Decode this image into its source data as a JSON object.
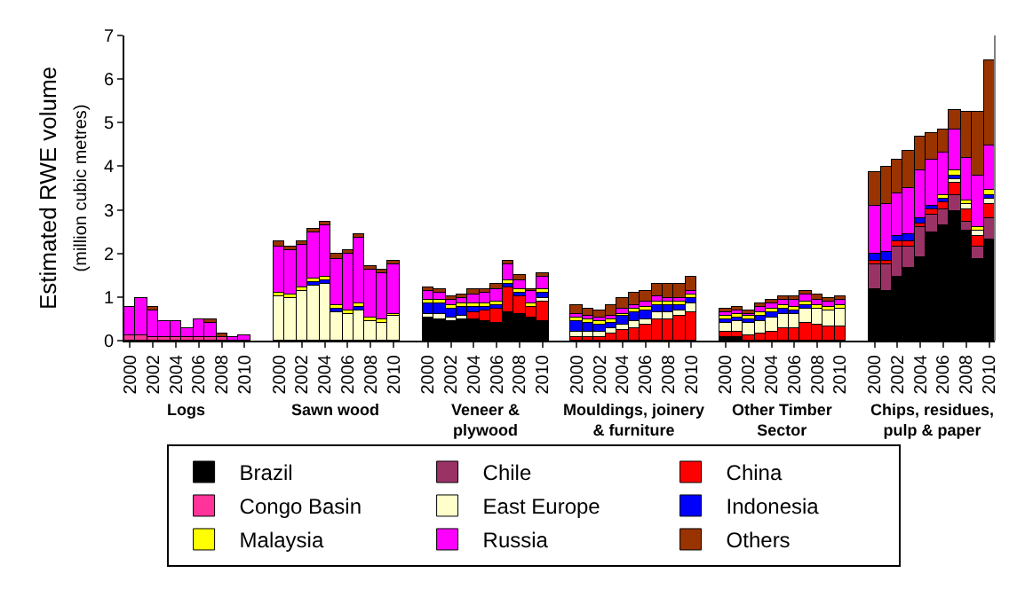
{
  "chart_data": {
    "type": "bar",
    "stacked": true,
    "ylabel": "Estimated RWE volume\n(million cubic metres)",
    "categories": [
      "2000",
      null,
      "2002",
      null,
      "2004",
      null,
      "2006",
      null,
      "2008",
      null,
      "2010",
      null,
      null,
      "2000",
      null,
      "2002",
      null,
      "2004",
      null,
      "2006",
      null,
      "2008",
      null,
      "2010",
      null,
      null,
      "2000",
      null,
      "2002",
      null,
      "2004",
      null,
      "2006",
      null,
      "2008",
      null,
      "2010",
      null,
      null,
      "2000",
      null,
      "2002",
      null,
      "2004",
      null,
      "2006",
      null,
      "2008",
      null,
      "2010",
      null,
      null,
      "2000",
      null,
      "2002",
      null,
      "2004",
      null,
      "2006",
      null,
      "2008",
      null,
      "2010",
      null,
      null,
      "2000",
      null,
      "2002",
      null,
      "2004",
      null,
      "2006",
      null,
      "2008",
      null,
      "2010"
    ],
    "series": [
      {
        "name": "Brazil",
        "color": "#000000",
        "values": [
          null,
          null,
          null,
          null,
          null,
          null,
          null,
          null,
          null,
          null,
          null,
          null,
          null,
          null,
          null,
          null,
          null,
          null,
          null,
          null,
          null,
          null,
          null,
          null,
          null,
          null,
          0.53,
          0.5,
          0.44,
          0.5,
          0.47,
          0.44,
          0.39,
          0.65,
          0.61,
          0.53,
          0.46,
          null,
          null,
          null,
          null,
          null,
          null,
          null,
          null,
          null,
          null,
          null,
          null,
          null,
          null,
          null,
          0.1,
          0.08,
          null,
          null,
          null,
          null,
          null,
          null,
          null,
          null,
          null,
          null,
          null,
          1.18,
          1.12,
          1.46,
          1.65,
          1.93,
          2.5,
          2.63,
          2.98,
          2.53,
          1.88,
          2.33
        ]
      },
      {
        "name": "Chile",
        "color": "#993366",
        "values": [
          null,
          null,
          null,
          null,
          null,
          null,
          null,
          null,
          null,
          null,
          null,
          null,
          null,
          null,
          null,
          null,
          null,
          null,
          null,
          null,
          null,
          null,
          null,
          null,
          null,
          null,
          null,
          null,
          null,
          null,
          null,
          null,
          null,
          null,
          null,
          null,
          null,
          null,
          null,
          null,
          null,
          null,
          null,
          null,
          null,
          null,
          null,
          null,
          null,
          null,
          null,
          null,
          null,
          null,
          null,
          null,
          null,
          null,
          null,
          null,
          null,
          null,
          null,
          null,
          null,
          0.56,
          0.65,
          0.68,
          0.51,
          0.66,
          0.39,
          0.39,
          0.35,
          0.19,
          0.28,
          0.48
        ]
      },
      {
        "name": "China",
        "color": "#ff0000",
        "values": [
          null,
          null,
          null,
          null,
          null,
          null,
          null,
          null,
          null,
          null,
          null,
          null,
          null,
          null,
          null,
          null,
          null,
          null,
          null,
          null,
          null,
          null,
          null,
          null,
          null,
          null,
          null,
          null,
          null,
          null,
          0.2,
          0.24,
          0.35,
          0.59,
          0.41,
          0.26,
          0.45,
          null,
          null,
          0.1,
          0.1,
          0.1,
          0.15,
          0.25,
          0.3,
          0.35,
          0.48,
          0.5,
          0.55,
          0.65,
          null,
          null,
          0.1,
          0.12,
          0.12,
          0.18,
          0.22,
          0.3,
          0.3,
          0.4,
          0.35,
          0.33,
          0.32,
          null,
          null,
          0.1,
          0.08,
          0.12,
          0.12,
          0.1,
          0.12,
          0.15,
          0.3,
          0.3,
          0.25,
          0.32
        ]
      },
      {
        "name": "Congo Basin",
        "color": "#ff3399",
        "values": [
          0.12,
          0.13,
          0.1,
          0.08,
          0.09,
          0.08,
          0.1,
          0.09,
          0.08,
          null,
          null,
          null,
          null,
          null,
          null,
          null,
          null,
          null,
          null,
          null,
          null,
          null,
          null,
          null,
          null,
          null,
          null,
          null,
          null,
          null,
          null,
          null,
          null,
          null,
          null,
          null,
          null,
          null,
          null,
          null,
          null,
          null,
          null,
          null,
          null,
          null,
          null,
          null,
          null,
          null,
          null,
          null,
          null,
          null,
          null,
          null,
          null,
          null,
          null,
          null,
          null,
          null,
          null,
          null,
          null,
          null,
          null,
          null,
          null,
          null,
          null,
          null,
          null,
          null,
          null,
          null
        ]
      },
      {
        "name": "East Europe",
        "color": "#ffffcc",
        "values": [
          null,
          null,
          null,
          null,
          null,
          null,
          null,
          null,
          null,
          null,
          null,
          null,
          null,
          1.0,
          0.98,
          1.15,
          1.28,
          1.3,
          0.65,
          0.62,
          0.68,
          0.45,
          0.4,
          0.55,
          null,
          null,
          0.08,
          0.1,
          0.08,
          0.08,
          null,
          null,
          null,
          null,
          null,
          null,
          0.08,
          null,
          null,
          0.1,
          0.1,
          0.1,
          0.12,
          0.12,
          0.15,
          0.15,
          0.17,
          0.15,
          0.15,
          0.2,
          null,
          null,
          0.22,
          0.25,
          0.27,
          0.28,
          0.3,
          0.32,
          0.32,
          0.35,
          0.4,
          0.38,
          0.4,
          null,
          null,
          null,
          null,
          null,
          null,
          null,
          null,
          null,
          0.08,
          0.1,
          0.12,
          0.13
        ]
      },
      {
        "name": "Indonesia",
        "color": "#0000ff",
        "values": [
          null,
          null,
          null,
          null,
          null,
          null,
          null,
          null,
          null,
          null,
          null,
          null,
          null,
          null,
          null,
          null,
          0.08,
          0.08,
          0.08,
          null,
          0.08,
          null,
          null,
          null,
          null,
          null,
          0.26,
          0.25,
          0.2,
          0.18,
          0.1,
          0.09,
          0.08,
          0.08,
          0.08,
          null,
          0.1,
          null,
          null,
          0.25,
          0.2,
          0.15,
          0.15,
          0.18,
          0.2,
          0.2,
          0.18,
          0.15,
          0.12,
          0.12,
          null,
          null,
          0.08,
          0.08,
          0.08,
          0.12,
          0.14,
          0.12,
          0.08,
          0.08,
          null,
          null,
          null,
          null,
          null,
          0.15,
          0.18,
          0.15,
          0.15,
          0.12,
          0.1,
          0.08,
          0.08,
          null,
          null,
          0.08
        ]
      },
      {
        "name": "Malaysia",
        "color": "#ffff00",
        "values": [
          null,
          null,
          null,
          null,
          null,
          null,
          null,
          null,
          null,
          null,
          null,
          null,
          null,
          0.08,
          0.08,
          0.08,
          0.08,
          0.08,
          0.08,
          0.08,
          0.08,
          0.08,
          0.08,
          0.08,
          null,
          null,
          0.08,
          0.08,
          0.08,
          0.08,
          0.08,
          0.08,
          0.08,
          0.08,
          0.08,
          0.08,
          0.08,
          null,
          null,
          0.08,
          0.08,
          0.08,
          0.08,
          0.08,
          0.08,
          0.08,
          0.08,
          0.08,
          0.08,
          0.08,
          null,
          null,
          0.08,
          0.08,
          0.08,
          0.08,
          0.08,
          0.08,
          0.08,
          0.08,
          0.08,
          0.08,
          0.08,
          null,
          null,
          null,
          null,
          null,
          null,
          null,
          null,
          0.08,
          0.1,
          0.1,
          0.08,
          0.12
        ]
      },
      {
        "name": "Russia",
        "color": "#ff00ff",
        "values": [
          0.66,
          0.85,
          0.6,
          0.38,
          0.34,
          0.2,
          0.38,
          0.31,
          null,
          0.08,
          0.13,
          null,
          null,
          1.08,
          1.0,
          0.96,
          1.06,
          1.17,
          1.07,
          1.31,
          1.54,
          1.11,
          1.05,
          1.12,
          null,
          null,
          0.18,
          0.15,
          0.14,
          0.15,
          0.22,
          0.24,
          0.3,
          0.35,
          0.22,
          0.25,
          0.3,
          null,
          null,
          0.08,
          0.08,
          0.08,
          0.08,
          0.1,
          0.1,
          0.1,
          0.1,
          0.08,
          0.08,
          0.08,
          null,
          null,
          0.08,
          0.08,
          0.08,
          0.1,
          0.12,
          0.13,
          0.14,
          0.15,
          0.12,
          0.1,
          0.12,
          null,
          null,
          1.1,
          1.12,
          0.97,
          1.08,
          1.09,
          1.05,
          0.98,
          0.96,
          0.99,
          1.16,
          1.03
        ]
      },
      {
        "name": "Others",
        "color": "#993300",
        "values": [
          null,
          null,
          0.08,
          null,
          null,
          null,
          null,
          0.08,
          0.08,
          null,
          null,
          null,
          null,
          0.12,
          0.1,
          0.1,
          0.08,
          0.1,
          0.12,
          0.08,
          0.08,
          0.08,
          0.08,
          0.08,
          null,
          null,
          0.1,
          0.1,
          0.08,
          0.08,
          0.1,
          0.1,
          0.1,
          0.1,
          0.1,
          0.08,
          0.08,
          null,
          null,
          0.2,
          0.17,
          0.18,
          0.22,
          0.26,
          0.26,
          0.25,
          0.31,
          0.36,
          0.34,
          0.32,
          null,
          null,
          0.08,
          0.08,
          0.08,
          0.08,
          0.08,
          0.08,
          0.08,
          0.1,
          0.1,
          0.08,
          0.08,
          null,
          null,
          0.76,
          0.82,
          0.78,
          0.83,
          0.8,
          0.6,
          0.52,
          0.46,
          1.05,
          1.46,
          1.95
        ]
      }
    ],
    "annotations": [
      "Logs",
      "Sawn wood",
      "Veneer &\nplywood",
      "Mouldings, joinery\n& furniture",
      "Other Timber\nSector",
      "Chips, residues,\npulp & paper"
    ],
    "ylim": [
      0,
      7
    ],
    "yticks": [
      0,
      1,
      2,
      3,
      4,
      5,
      6,
      7
    ],
    "grid": false,
    "legend": "bottom"
  }
}
